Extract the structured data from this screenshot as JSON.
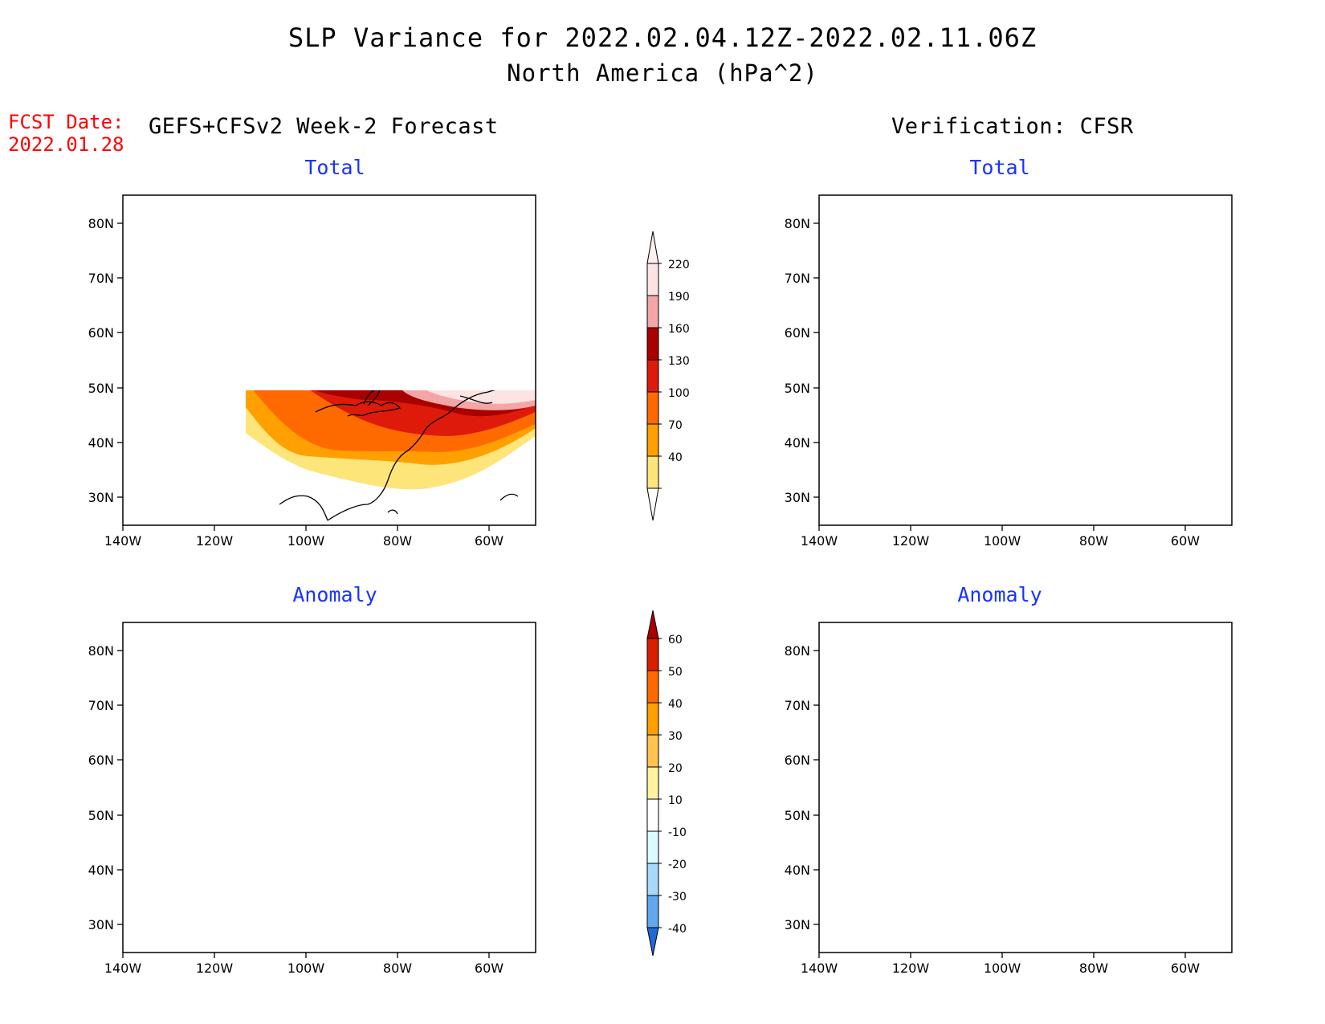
{
  "title": "SLP Variance for 2022.02.04.12Z-2022.02.11.06Z",
  "subtitle": "North America (hPa^2)",
  "fcst_date_label": "FCST Date:",
  "fcst_date_value": "2022.01.28",
  "left_header": "GEFS+CFSv2 Week-2 Forecast",
  "right_header": "Verification: CFSR",
  "panels": {
    "forecast_total_title": "Total",
    "verification_total_title": "Total",
    "forecast_anomaly_title": "Anomaly",
    "verification_anomaly_title": "Anomaly"
  },
  "axes": {
    "lat_labels": [
      "80N",
      "70N",
      "60N",
      "50N",
      "40N",
      "30N"
    ],
    "lon_labels": [
      "140W",
      "120W",
      "100W",
      "80W",
      "60W"
    ]
  },
  "colorbars": {
    "total": {
      "labels": [
        "220",
        "190",
        "160",
        "130",
        "100",
        "70",
        "40"
      ],
      "colors": [
        "#fde4e4",
        "#f3a6a6",
        "#a90000",
        "#de1a0a",
        "#ff6a00",
        "#ffa000",
        "#fee57a"
      ]
    },
    "anomaly": {
      "labels": [
        "60",
        "50",
        "40",
        "30",
        "20",
        "10",
        "-10",
        "-20",
        "-30",
        "-40"
      ],
      "colors": [
        "#a90000",
        "#d82000",
        "#ff6a00",
        "#ffa000",
        "#ffc350",
        "#fff3a0",
        "#ffffff",
        "#ddfaff",
        "#a9d9fa",
        "#62a8ee",
        "#1f6ad8"
      ]
    }
  }
}
